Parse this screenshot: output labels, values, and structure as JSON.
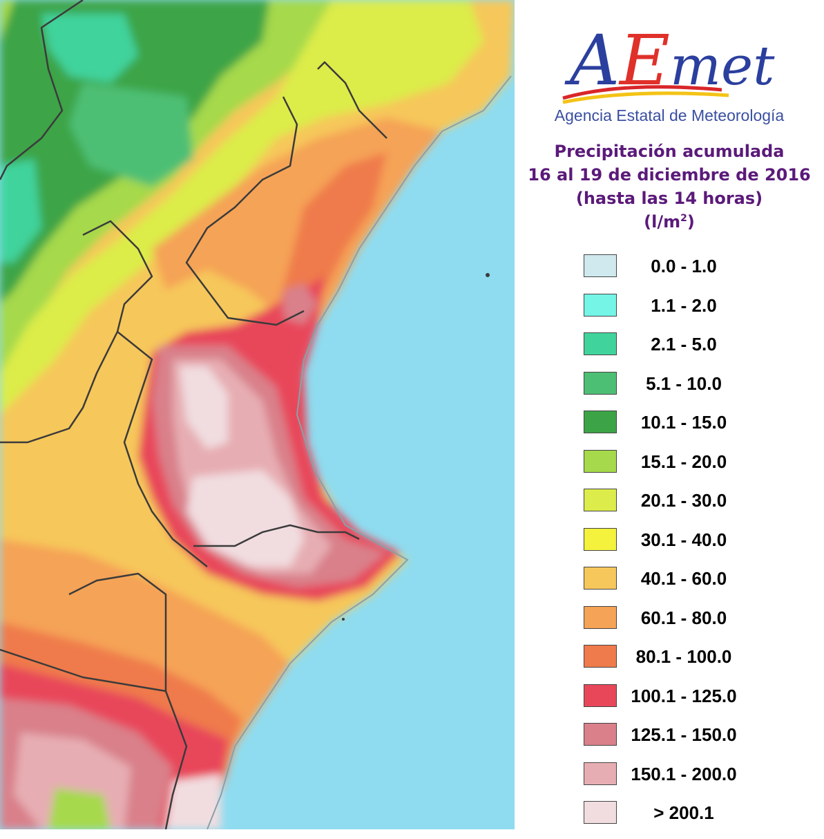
{
  "logo": {
    "wordmark": "AEmet",
    "agency": "Agencia Estatal de Meteorología",
    "colors": {
      "a": "#2b3f9e",
      "e": "#e0302a",
      "met": "#2b3f9e",
      "swoosh_red": "#d8262a",
      "swoosh_yellow": "#f3c316"
    }
  },
  "title": {
    "line1": "Precipitación acumulada",
    "line2": "16 al 19 de diciembre de 2016",
    "line3": "(hasta las 14 horas)",
    "unit": "(l/m",
    "unit_sup": "2",
    "unit_close": ")",
    "color": "#5b1a7a"
  },
  "legend": [
    {
      "label": "0.0 - 1.0",
      "color": "#cfe9ee"
    },
    {
      "label": "1.1 - 2.0",
      "color": "#74f5e6"
    },
    {
      "label": "2.1 - 5.0",
      "color": "#41d39c"
    },
    {
      "label": "5.1 - 10.0",
      "color": "#4dbf74"
    },
    {
      "label": "10.1 - 15.0",
      "color": "#3ca446"
    },
    {
      "label": "15.1 - 20.0",
      "color": "#a6d94b"
    },
    {
      "label": "20.1 - 30.0",
      "color": "#dcec4a"
    },
    {
      "label": "30.1 - 40.0",
      "color": "#f4f23c"
    },
    {
      "label": "40.1 - 60.0",
      "color": "#f6c75a"
    },
    {
      "label": "60.1 - 80.0",
      "color": "#f5a356"
    },
    {
      "label": "80.1 - 100.0",
      "color": "#ef7a4c"
    },
    {
      "label": "100.1 - 125.0",
      "color": "#e8475a"
    },
    {
      "label": "125.1 - 150.0",
      "color": "#d9808a"
    },
    {
      "label": "150.1 - 200.0",
      "color": "#e6adb2"
    },
    {
      "label": "> 200.1",
      "color": "#f1dde0"
    }
  ],
  "map": {
    "sea_color": "#8fdcf0",
    "border_color": "#3b3b3b"
  }
}
